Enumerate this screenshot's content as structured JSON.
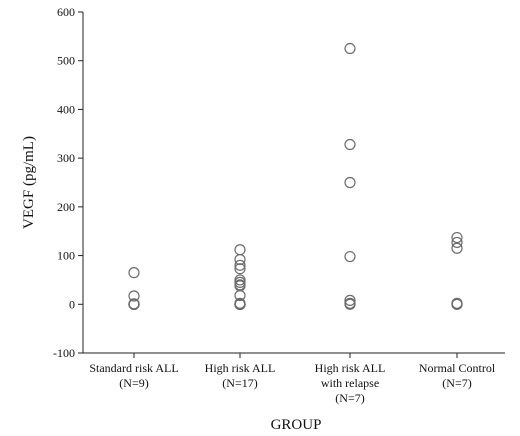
{
  "chart_data": {
    "type": "scatter",
    "title": "",
    "xlabel": "GROUP",
    "ylabel": "VEGF (pg/mL)",
    "ylim": [
      -100,
      600
    ],
    "yticks": [
      -100,
      0,
      100,
      200,
      300,
      400,
      500,
      600
    ],
    "grid": false,
    "categories": [
      {
        "lines": [
          "Standard risk ALL",
          "(N=9)"
        ],
        "values": [
          65,
          17,
          1,
          0,
          0,
          0,
          0,
          0,
          0
        ]
      },
      {
        "lines": [
          "High risk ALL",
          "(N=17)"
        ],
        "values": [
          112,
          92,
          80,
          73,
          50,
          45,
          40,
          38,
          18,
          2,
          0,
          0,
          0,
          0,
          0,
          0,
          0
        ]
      },
      {
        "lines": [
          "High risk ALL",
          "with relapse",
          "(N=7)"
        ],
        "values": [
          525,
          328,
          250,
          98,
          8,
          2,
          0
        ]
      },
      {
        "lines": [
          "Normal Control",
          "(N=7)"
        ],
        "values": [
          137,
          127,
          115,
          2,
          1,
          0,
          0
        ]
      }
    ]
  }
}
